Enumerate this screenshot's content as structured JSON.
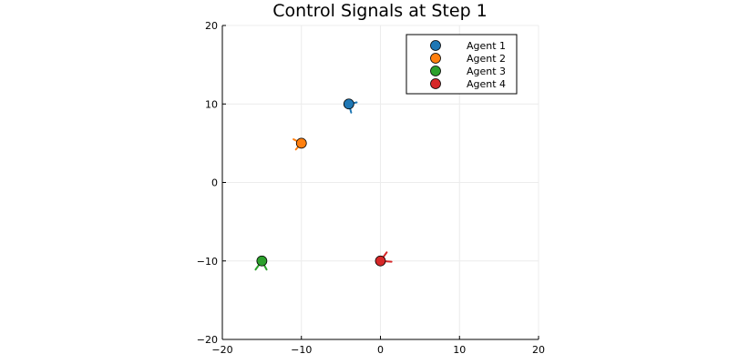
{
  "chart_data": {
    "type": "scatter",
    "title": "Control Signals at Step 1",
    "xlabel": "",
    "ylabel": "",
    "xlim": [
      -20,
      20
    ],
    "ylim": [
      -20,
      20
    ],
    "x_ticks": [
      -20,
      -10,
      0,
      10,
      20
    ],
    "y_ticks": [
      -20,
      -10,
      0,
      10,
      20
    ],
    "x_tick_labels": [
      "−20",
      "−10",
      "0",
      "10",
      "20"
    ],
    "y_tick_labels": [
      "−20",
      "−10",
      "0",
      "10",
      "20"
    ],
    "grid": true,
    "legend_position": "top-right",
    "series": [
      {
        "name": "Agent 1",
        "color": "#1f77b4",
        "x": [
          -4
        ],
        "y": [
          10
        ],
        "control_segments": [
          {
            "dx": 1.0,
            "dy": 0.2
          },
          {
            "dx": 0.3,
            "dy": -1.1
          }
        ]
      },
      {
        "name": "Agent 2",
        "color": "#ff7f0e",
        "x": [
          -10
        ],
        "y": [
          5
        ],
        "control_segments": [
          {
            "dx": -1.0,
            "dy": 0.5
          },
          {
            "dx": -0.7,
            "dy": -0.8
          }
        ]
      },
      {
        "name": "Agent 3",
        "color": "#2ca02c",
        "x": [
          -15
        ],
        "y": [
          -10
        ],
        "control_segments": [
          {
            "dx": -0.8,
            "dy": -1.1
          },
          {
            "dx": 0.6,
            "dy": -1.1
          }
        ]
      },
      {
        "name": "Agent 4",
        "color": "#d62728",
        "x": [
          0
        ],
        "y": [
          -10
        ],
        "control_segments": [
          {
            "dx": 0.8,
            "dy": 1.1
          },
          {
            "dx": 1.4,
            "dy": -0.1
          }
        ]
      }
    ]
  }
}
